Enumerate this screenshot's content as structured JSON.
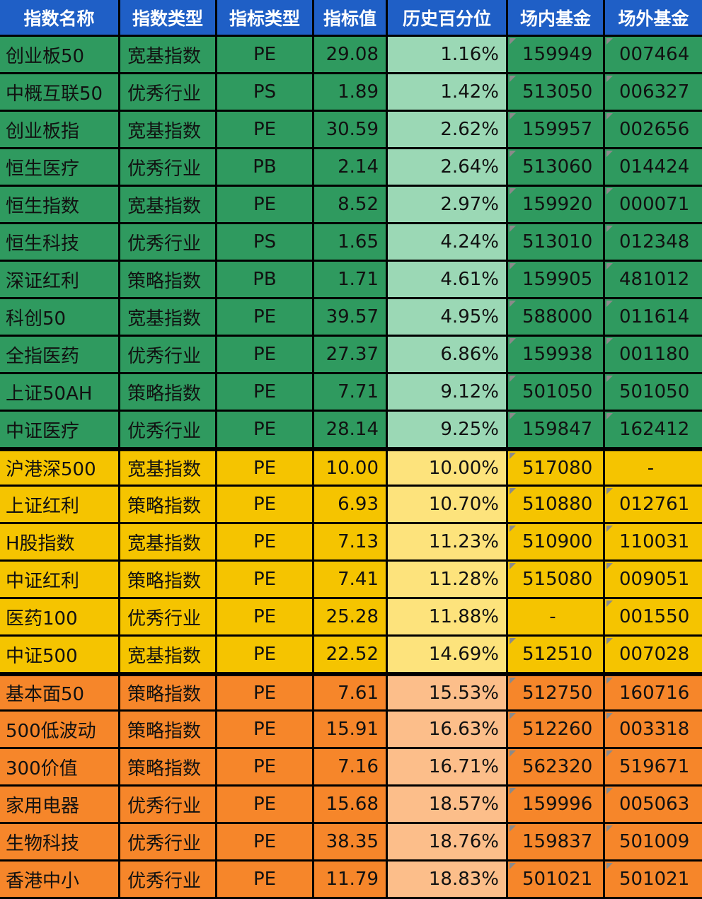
{
  "header": [
    "指数名称",
    "指数类型",
    "指标类型",
    "指标值",
    "历史百分位",
    "场内基金",
    "场外基金"
  ],
  "colors": {
    "header_bg": "#1f5fc6",
    "green": "#2f9a5f",
    "green_light": "#9bd8b5",
    "yellow": "#f5c400",
    "yellow_light": "#fde37c",
    "orange": "#f6862a",
    "orange_light": "#fcbe8a"
  },
  "groups": [
    {
      "tier": "green",
      "rows": [
        {
          "name": "创业板50",
          "type": "宽基指数",
          "metric": "PE",
          "value": "29.08",
          "pct": "1.16%",
          "in": "159949",
          "out": "007464"
        },
        {
          "name": "中概互联50",
          "type": "优秀行业",
          "metric": "PS",
          "value": "1.89",
          "pct": "1.42%",
          "in": "513050",
          "out": "006327"
        },
        {
          "name": "创业板指",
          "type": "宽基指数",
          "metric": "PE",
          "value": "30.59",
          "pct": "2.62%",
          "in": "159957",
          "out": "002656"
        },
        {
          "name": "恒生医疗",
          "type": "优秀行业",
          "metric": "PB",
          "value": "2.14",
          "pct": "2.64%",
          "in": "513060",
          "out": "014424"
        },
        {
          "name": "恒生指数",
          "type": "宽基指数",
          "metric": "PE",
          "value": "8.52",
          "pct": "2.97%",
          "in": "159920",
          "out": "000071"
        },
        {
          "name": "恒生科技",
          "type": "优秀行业",
          "metric": "PS",
          "value": "1.65",
          "pct": "4.24%",
          "in": "513010",
          "out": "012348"
        },
        {
          "name": "深证红利",
          "type": "策略指数",
          "metric": "PB",
          "value": "1.71",
          "pct": "4.61%",
          "in": "159905",
          "out": "481012"
        },
        {
          "name": "科创50",
          "type": "宽基指数",
          "metric": "PE",
          "value": "39.57",
          "pct": "4.95%",
          "in": "588000",
          "out": "011614"
        },
        {
          "name": "全指医药",
          "type": "优秀行业",
          "metric": "PE",
          "value": "27.37",
          "pct": "6.86%",
          "in": "159938",
          "out": "001180"
        },
        {
          "name": "上证50AH",
          "type": "策略指数",
          "metric": "PE",
          "value": "7.71",
          "pct": "9.12%",
          "in": "501050",
          "out": "501050"
        },
        {
          "name": "中证医疗",
          "type": "优秀行业",
          "metric": "PE",
          "value": "28.14",
          "pct": "9.25%",
          "in": "159847",
          "out": "162412"
        }
      ]
    },
    {
      "tier": "yellow",
      "rows": [
        {
          "name": "沪港深500",
          "type": "宽基指数",
          "metric": "PE",
          "value": "10.00",
          "pct": "10.00%",
          "in": "517080",
          "out": "-"
        },
        {
          "name": "上证红利",
          "type": "策略指数",
          "metric": "PE",
          "value": "6.93",
          "pct": "10.70%",
          "in": "510880",
          "out": "012761"
        },
        {
          "name": "H股指数",
          "type": "宽基指数",
          "metric": "PE",
          "value": "7.13",
          "pct": "11.23%",
          "in": "510900",
          "out": "110031"
        },
        {
          "name": "中证红利",
          "type": "策略指数",
          "metric": "PE",
          "value": "7.41",
          "pct": "11.28%",
          "in": "515080",
          "out": "009051"
        },
        {
          "name": "医药100",
          "type": "优秀行业",
          "metric": "PE",
          "value": "25.28",
          "pct": "11.88%",
          "in": "-",
          "out": "001550"
        },
        {
          "name": "中证500",
          "type": "宽基指数",
          "metric": "PE",
          "value": "22.52",
          "pct": "14.69%",
          "in": "512510",
          "out": "007028"
        }
      ]
    },
    {
      "tier": "orange",
      "rows": [
        {
          "name": "基本面50",
          "type": "策略指数",
          "metric": "PE",
          "value": "7.61",
          "pct": "15.53%",
          "in": "512750",
          "out": "160716"
        },
        {
          "name": "500低波动",
          "type": "策略指数",
          "metric": "PE",
          "value": "15.91",
          "pct": "16.63%",
          "in": "512260",
          "out": "003318"
        },
        {
          "name": "300价值",
          "type": "策略指数",
          "metric": "PE",
          "value": "7.16",
          "pct": "16.71%",
          "in": "562320",
          "out": "519671"
        },
        {
          "name": "家用电器",
          "type": "优秀行业",
          "metric": "PE",
          "value": "15.68",
          "pct": "18.57%",
          "in": "159996",
          "out": "005063"
        },
        {
          "name": "生物科技",
          "type": "优秀行业",
          "metric": "PE",
          "value": "38.35",
          "pct": "18.76%",
          "in": "159837",
          "out": "501009"
        },
        {
          "name": "香港中小",
          "type": "优秀行业",
          "metric": "PE",
          "value": "11.79",
          "pct": "18.83%",
          "in": "501021",
          "out": "501021"
        }
      ]
    }
  ]
}
